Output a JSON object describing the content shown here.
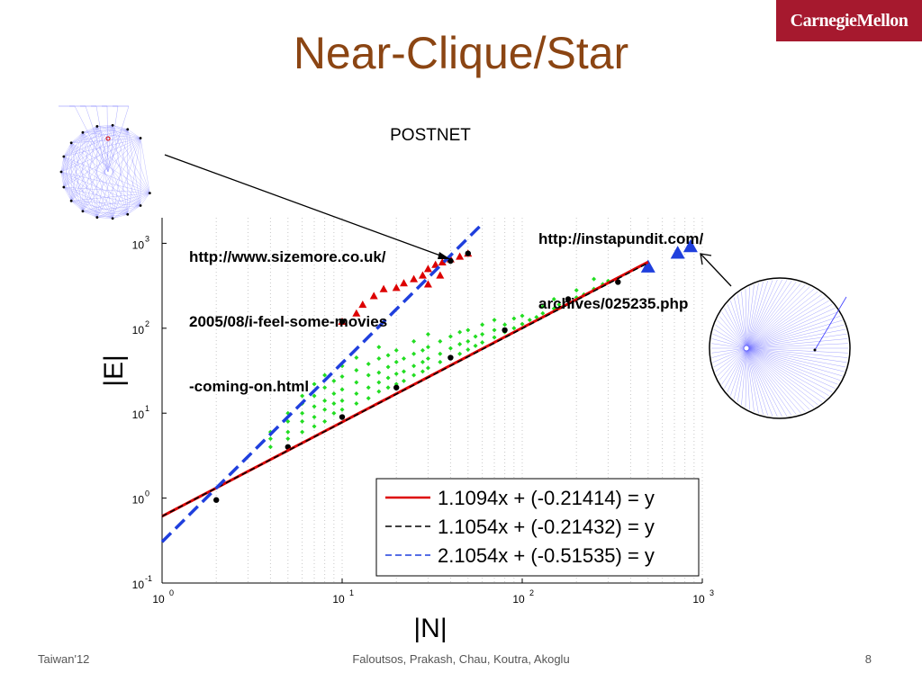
{
  "slide": {
    "title": "Near-Clique/Star",
    "logo": "CarnegieMellon",
    "footer_left": "Taiwan'12",
    "footer_center": "Faloutsos, Prakash, Chau, Koutra, Akoglu",
    "page_number": "8"
  },
  "annotations": {
    "clique_url_lines": [
      "http://www.sizemore.co.uk/",
      "2005/08/i-feel-some-movies",
      "-coming-on.html"
    ],
    "star_url_lines": [
      "http://instapundit.com/",
      "archives/025235.php"
    ]
  },
  "chart_data": {
    "type": "scatter",
    "title": "POSTNET",
    "xlabel": "|N|",
    "ylabel": "|E|",
    "xscale": "log",
    "yscale": "log",
    "xlim": [
      1,
      1000
    ],
    "ylim": [
      0.1,
      2000
    ],
    "xticks": [
      {
        "value": 1,
        "label": "10",
        "exp": "0"
      },
      {
        "value": 10,
        "label": "10",
        "exp": "1"
      },
      {
        "value": 100,
        "label": "10",
        "exp": "2"
      },
      {
        "value": 1000,
        "label": "10",
        "exp": "3"
      }
    ],
    "yticks": [
      {
        "value": 0.1,
        "label": "10",
        "exp": "-1"
      },
      {
        "value": 1,
        "label": "10",
        "exp": "0"
      },
      {
        "value": 10,
        "label": "10",
        "exp": "1"
      },
      {
        "value": 100,
        "label": "10",
        "exp": "2"
      },
      {
        "value": 1000,
        "label": "10",
        "exp": "3"
      }
    ],
    "grid": "vertical-dotted",
    "legend_position": "bottom-right",
    "fits": [
      {
        "label": "1.1094x + (-0.21414) = y",
        "slope": 1.1094,
        "intercept": -0.21414,
        "color": "#dd0000",
        "style": "solid",
        "x_range": [
          1,
          500
        ]
      },
      {
        "label": "1.1054x + (-0.21432) = y",
        "slope": 1.1054,
        "intercept": -0.21432,
        "color": "#000000",
        "style": "dashed",
        "x_range": [
          1,
          500
        ]
      },
      {
        "label": "2.1054x + (-0.51535) = y",
        "slope": 2.1054,
        "intercept": -0.51535,
        "color": "#1f3fdd",
        "style": "dashed",
        "x_range": [
          1,
          60
        ]
      }
    ],
    "series": [
      {
        "marker": "diamond",
        "color": "#22dd22",
        "points": [
          [
            4,
            4
          ],
          [
            4,
            5
          ],
          [
            4,
            6
          ],
          [
            5,
            5
          ],
          [
            5,
            6
          ],
          [
            5,
            8
          ],
          [
            5,
            10
          ],
          [
            6,
            6
          ],
          [
            6,
            8
          ],
          [
            6,
            10
          ],
          [
            6,
            13
          ],
          [
            6,
            16
          ],
          [
            7,
            7
          ],
          [
            7,
            9
          ],
          [
            7,
            12
          ],
          [
            7,
            16
          ],
          [
            7,
            22
          ],
          [
            8,
            8
          ],
          [
            8,
            11
          ],
          [
            8,
            14
          ],
          [
            8,
            20
          ],
          [
            8,
            28
          ],
          [
            9,
            10
          ],
          [
            9,
            13
          ],
          [
            9,
            17
          ],
          [
            9,
            24
          ],
          [
            10,
            11
          ],
          [
            10,
            14
          ],
          [
            10,
            19
          ],
          [
            10,
            27
          ],
          [
            10,
            36
          ],
          [
            12,
            13
          ],
          [
            12,
            17
          ],
          [
            12,
            23
          ],
          [
            12,
            32
          ],
          [
            12,
            45
          ],
          [
            14,
            15
          ],
          [
            14,
            20
          ],
          [
            14,
            28
          ],
          [
            14,
            38
          ],
          [
            16,
            18
          ],
          [
            16,
            23
          ],
          [
            16,
            30
          ],
          [
            16,
            44
          ],
          [
            16,
            60
          ],
          [
            18,
            20
          ],
          [
            18,
            26
          ],
          [
            18,
            35
          ],
          [
            18,
            48
          ],
          [
            20,
            22
          ],
          [
            20,
            29
          ],
          [
            20,
            40
          ],
          [
            20,
            55
          ],
          [
            22,
            24
          ],
          [
            22,
            31
          ],
          [
            22,
            44
          ],
          [
            25,
            28
          ],
          [
            25,
            36
          ],
          [
            25,
            50
          ],
          [
            25,
            70
          ],
          [
            28,
            31
          ],
          [
            28,
            40
          ],
          [
            28,
            55
          ],
          [
            30,
            34
          ],
          [
            30,
            44
          ],
          [
            30,
            60
          ],
          [
            30,
            85
          ],
          [
            35,
            40
          ],
          [
            35,
            50
          ],
          [
            35,
            70
          ],
          [
            40,
            45
          ],
          [
            40,
            58
          ],
          [
            40,
            80
          ],
          [
            45,
            50
          ],
          [
            45,
            65
          ],
          [
            45,
            90
          ],
          [
            50,
            56
          ],
          [
            50,
            70
          ],
          [
            50,
            95
          ],
          [
            55,
            62
          ],
          [
            55,
            80
          ],
          [
            60,
            68
          ],
          [
            60,
            85
          ],
          [
            60,
            110
          ],
          [
            70,
            78
          ],
          [
            70,
            95
          ],
          [
            70,
            125
          ],
          [
            80,
            90
          ],
          [
            80,
            110
          ],
          [
            90,
            100
          ],
          [
            90,
            130
          ],
          [
            100,
            112
          ],
          [
            100,
            140
          ],
          [
            110,
            125
          ],
          [
            120,
            135
          ],
          [
            130,
            150
          ],
          [
            130,
            180
          ],
          [
            150,
            170
          ],
          [
            160,
            190
          ],
          [
            180,
            210
          ],
          [
            200,
            230
          ],
          [
            220,
            250
          ],
          [
            250,
            290
          ],
          [
            280,
            330
          ],
          [
            300,
            360
          ],
          [
            150,
            220
          ],
          [
            200,
            280
          ],
          [
            250,
            380
          ]
        ]
      },
      {
        "marker": "triangle",
        "color": "#dd0000",
        "points": [
          [
            10,
            120
          ],
          [
            12,
            150
          ],
          [
            13,
            190
          ],
          [
            15,
            240
          ],
          [
            17,
            290
          ],
          [
            20,
            300
          ],
          [
            22,
            340
          ],
          [
            25,
            380
          ],
          [
            28,
            420
          ],
          [
            30,
            500
          ],
          [
            33,
            560
          ],
          [
            36,
            600
          ],
          [
            40,
            650
          ],
          [
            45,
            700
          ],
          [
            50,
            760
          ],
          [
            30,
            330
          ],
          [
            35,
            420
          ]
        ]
      },
      {
        "marker": "triangle",
        "color": "#1f3fdd",
        "points": [
          [
            500,
            530
          ],
          [
            730,
            770
          ],
          [
            860,
            920
          ]
        ]
      },
      {
        "marker": "dot",
        "color": "#000000",
        "points": [
          [
            2,
            0.95
          ],
          [
            5,
            4
          ],
          [
            10,
            9
          ],
          [
            20,
            20
          ],
          [
            40,
            45
          ],
          [
            80,
            95
          ],
          [
            180,
            220
          ],
          [
            340,
            350
          ],
          [
            10,
            120
          ],
          [
            40,
            620
          ],
          [
            50,
            760
          ]
        ]
      }
    ]
  }
}
